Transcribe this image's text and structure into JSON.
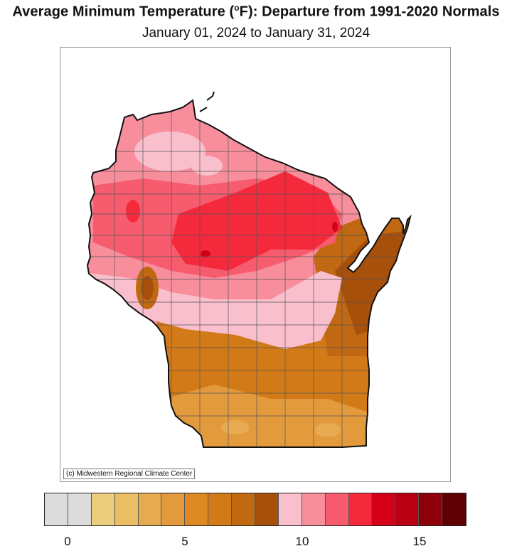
{
  "title_main": "Average Minimum Temperature (",
  "title_deg": "o",
  "title_rest": "F): Departure from 1991-2020 Normals",
  "subtitle": "January 01, 2024 to January 31, 2024",
  "credit": "(c) Midwestern Regional Climate Center",
  "legend": {
    "colors": [
      "#dcdcdc",
      "#dcdcdc",
      "#eccd7e",
      "#eabf64",
      "#e6aa50",
      "#e39a3c",
      "#de8a24",
      "#d27a18",
      "#c16812",
      "#a7500c",
      "#f9bfcc",
      "#f88e9c",
      "#f65c6e",
      "#f42a3c",
      "#d40018",
      "#b80012",
      "#8c0009",
      "#5e0004"
    ],
    "ticks": [
      "0",
      "5",
      "10",
      "15"
    ]
  }
}
